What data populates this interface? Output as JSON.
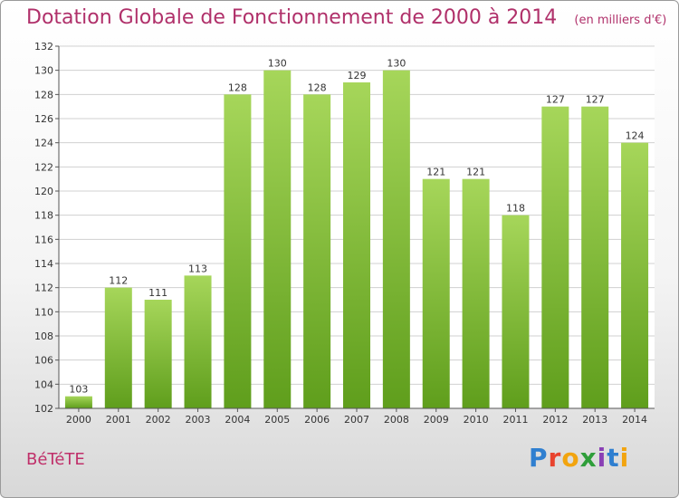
{
  "header": {
    "title": "Dotation Globale de Fonctionnement de 2000 à 2014",
    "subtitle": "(en milliers d'€)"
  },
  "footer": {
    "commune": "BéTéTE",
    "logo_text": "Proxiti",
    "logo_colors": [
      "#2f7fd0",
      "#e8432e",
      "#f2a40f",
      "#2f9e3a",
      "#8a3fb5",
      "#2f7fd0",
      "#f2a40f"
    ]
  },
  "chart_data": {
    "type": "bar",
    "title": "Dotation Globale de Fonctionnement de 2000 à 2014",
    "subtitle": "(en milliers d'€)",
    "categories": [
      "2000",
      "2001",
      "2002",
      "2003",
      "2004",
      "2005",
      "2006",
      "2007",
      "2008",
      "2009",
      "2010",
      "2011",
      "2012",
      "2013",
      "2014"
    ],
    "values": [
      103,
      112,
      111,
      113,
      128,
      130,
      128,
      129,
      130,
      121,
      121,
      118,
      127,
      127,
      124
    ],
    "data_labels": [
      "103",
      "112",
      "111",
      "113",
      "128",
      "130",
      "128",
      "129",
      "130",
      "121",
      "121",
      "118",
      "127",
      "127",
      "124"
    ],
    "xlabel": "",
    "ylabel": "",
    "ylim": [
      102,
      132
    ],
    "yticks": [
      102,
      104,
      106,
      108,
      110,
      112,
      114,
      116,
      118,
      120,
      122,
      124,
      126,
      128,
      130,
      132
    ],
    "ytick_labels": [
      "102",
      "104",
      "106",
      "108",
      "110",
      "112",
      "114",
      "116",
      "118",
      "120",
      "122",
      "124",
      "126",
      "128",
      "130",
      "132"
    ],
    "grid": "horizontal",
    "legend": "none",
    "bar_color": "#7cb832",
    "bar_color_light": "#a6d65a"
  }
}
